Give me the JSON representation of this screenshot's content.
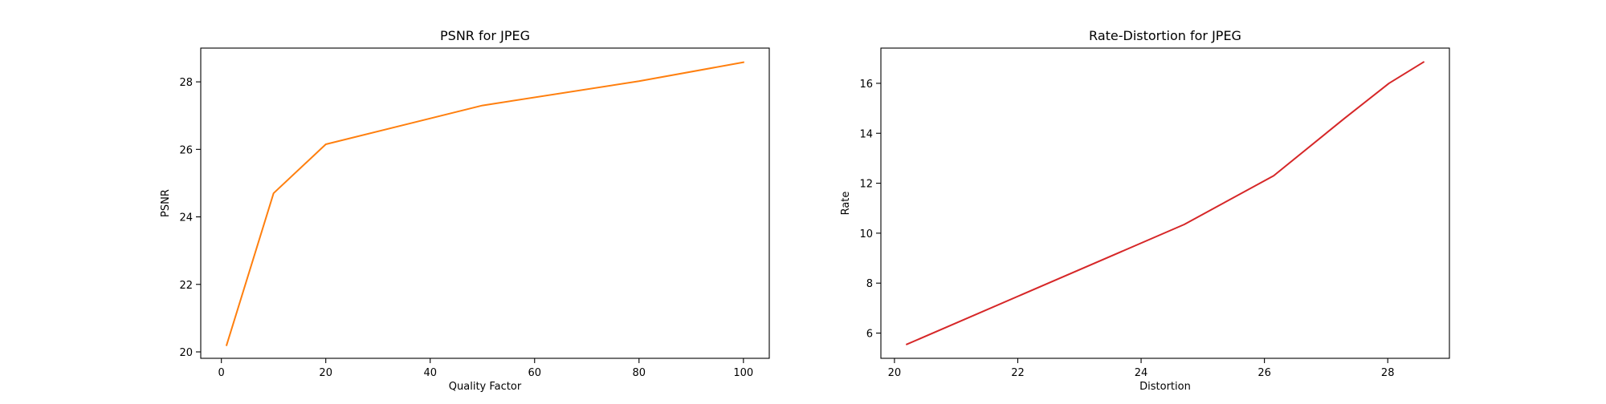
{
  "chart_data": [
    {
      "type": "line",
      "title": "PSNR for JPEG",
      "xlabel": "Quality Factor",
      "ylabel": "PSNR",
      "xlim": [
        -3.95,
        104.95
      ],
      "ylim": [
        19.81,
        29.0
      ],
      "xticks": [
        0,
        20,
        40,
        60,
        80,
        100
      ],
      "yticks": [
        20,
        22,
        24,
        26,
        28
      ],
      "grid": false,
      "legend": "none",
      "color": "#ff7f0e",
      "series": [
        {
          "x": [
            1,
            10,
            20,
            50,
            80,
            100
          ],
          "y": [
            20.2,
            24.7,
            26.15,
            27.3,
            28.02,
            28.58
          ]
        }
      ]
    },
    {
      "type": "line",
      "title": "Rate-Distortion for JPEG",
      "xlabel": "Distortion",
      "ylabel": "Rate",
      "xlim": [
        19.78,
        29.0
      ],
      "ylim": [
        4.99,
        17.41
      ],
      "xticks": [
        20,
        22,
        24,
        26,
        28
      ],
      "yticks": [
        6,
        8,
        10,
        12,
        14,
        16
      ],
      "grid": false,
      "legend": "none",
      "color": "#d62728",
      "series": [
        {
          "x": [
            20.2,
            24.7,
            26.15,
            27.3,
            28.02,
            28.58
          ],
          "y": [
            5.55,
            10.35,
            12.3,
            14.6,
            16.0,
            16.85
          ]
        }
      ]
    }
  ]
}
